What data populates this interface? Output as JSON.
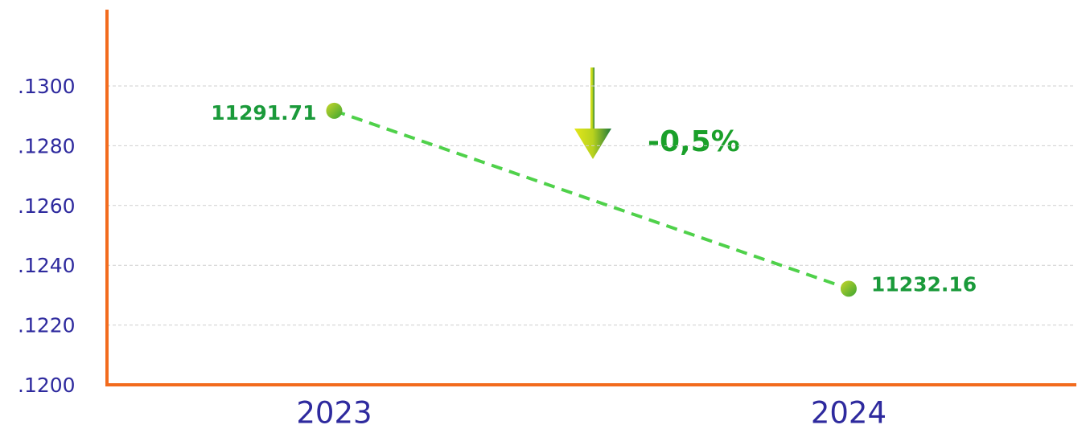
{
  "chart_data": {
    "type": "line",
    "categories": [
      "2023",
      "2024"
    ],
    "values": [
      11291.71,
      11232.16
    ],
    "color": "#4fd14a",
    "ylim": [
      11200,
      11325
    ],
    "yticks": [
      {
        "value": 11200,
        "label": ".1200"
      },
      {
        "value": 11220,
        "label": ".1220"
      },
      {
        "value": 11240,
        "label": ".1240"
      },
      {
        "value": 11260,
        "label": ".1260"
      },
      {
        "value": 11280,
        "label": ".1280"
      },
      {
        "value": 11300,
        "label": ".1300"
      }
    ],
    "grid": true,
    "annotation": "-0,5%"
  }
}
